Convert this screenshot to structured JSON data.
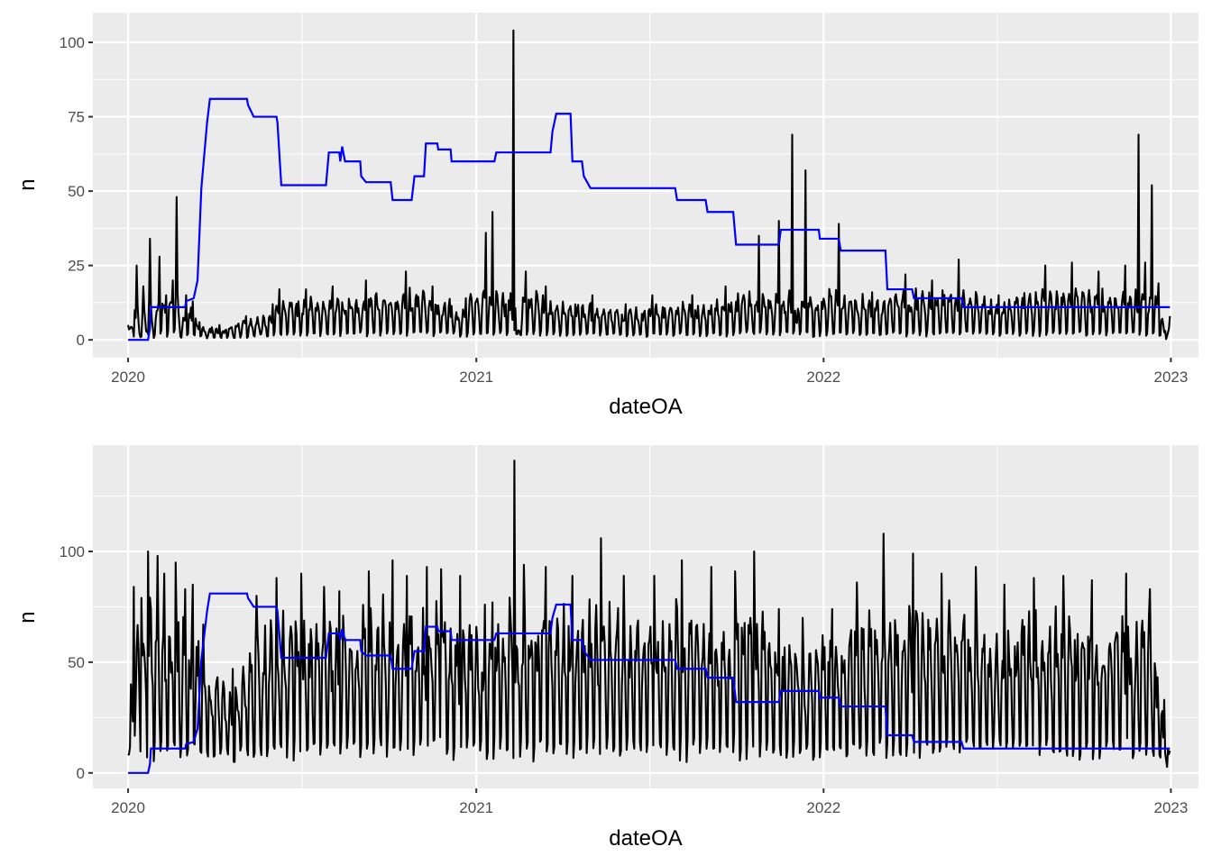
{
  "chart_data": [
    {
      "type": "line",
      "xlabel": "dateOA",
      "ylabel": "n",
      "xlim": [
        "2019-11-25",
        "2023-01-30"
      ],
      "ylim": [
        -6,
        110
      ],
      "x_ticks": [
        "2020",
        "2021",
        "2022",
        "2023"
      ],
      "y_ticks": [
        "0",
        "25",
        "50",
        "75",
        "100"
      ],
      "y_tick_values": [
        0,
        25,
        50,
        75,
        100
      ],
      "grid": true,
      "series": [
        {
          "kind": "daily counts (peaks)",
          "color": "#000000",
          "points": [
            [
              "2020-01-01",
              5
            ],
            [
              "2020-01-08",
              10
            ],
            [
              "2020-01-10",
              25
            ],
            [
              "2020-01-13",
              2
            ],
            [
              "2020-01-17",
              18
            ],
            [
              "2020-01-21",
              3
            ],
            [
              "2020-01-24",
              34
            ],
            [
              "2020-01-27",
              4
            ],
            [
              "2020-02-03",
              28
            ],
            [
              "2020-02-10",
              15
            ],
            [
              "2020-02-17",
              20
            ],
            [
              "2020-02-21",
              48
            ],
            [
              "2020-02-24",
              5
            ],
            [
              "2020-03-02",
              15
            ],
            [
              "2020-03-09",
              13
            ],
            [
              "2020-03-16",
              6
            ],
            [
              "2020-04-06",
              5
            ],
            [
              "2020-05-04",
              8
            ],
            [
              "2020-06-01",
              12
            ],
            [
              "2020-06-08",
              17
            ],
            [
              "2020-07-06",
              17
            ],
            [
              "2020-08-03",
              18
            ],
            [
              "2020-09-07",
              20
            ],
            [
              "2020-10-19",
              23
            ],
            [
              "2020-11-16",
              18
            ],
            [
              "2020-12-21",
              14
            ],
            [
              "2021-01-11",
              36
            ],
            [
              "2021-01-18",
              43
            ],
            [
              "2021-02-01",
              12
            ],
            [
              "2021-02-09",
              104
            ],
            [
              "2021-02-12",
              2
            ],
            [
              "2021-02-22",
              23
            ],
            [
              "2021-03-15",
              18
            ],
            [
              "2021-05-03",
              15
            ],
            [
              "2021-06-07",
              12
            ],
            [
              "2021-07-05",
              15
            ],
            [
              "2021-08-16",
              15
            ],
            [
              "2021-09-20",
              18
            ],
            [
              "2021-10-25",
              35
            ],
            [
              "2021-11-15",
              40
            ],
            [
              "2021-11-29",
              69
            ],
            [
              "2021-12-03",
              6
            ],
            [
              "2021-12-13",
              57
            ],
            [
              "2021-12-20",
              10
            ],
            [
              "2022-01-17",
              39
            ],
            [
              "2022-02-21",
              16
            ],
            [
              "2022-03-28",
              22
            ],
            [
              "2022-04-25",
              20
            ],
            [
              "2022-05-23",
              27
            ],
            [
              "2022-07-04",
              15
            ],
            [
              "2022-08-22",
              25
            ],
            [
              "2022-09-19",
              26
            ],
            [
              "2022-10-17",
              23
            ],
            [
              "2022-11-14",
              25
            ],
            [
              "2022-11-28",
              69
            ],
            [
              "2022-12-05",
              26
            ],
            [
              "2022-12-12",
              52
            ],
            [
              "2022-12-19",
              19
            ],
            [
              "2022-12-26",
              3
            ],
            [
              "2022-12-31",
              8
            ]
          ]
        },
        {
          "kind": "step level",
          "color": "#0000ff",
          "points": [
            [
              "2020-01-01",
              0
            ],
            [
              "2020-01-22",
              0
            ],
            [
              "2020-01-24",
              4
            ],
            [
              "2020-01-25",
              11
            ],
            [
              "2020-03-01",
              11
            ],
            [
              "2020-03-02",
              13
            ],
            [
              "2020-03-10",
              14
            ],
            [
              "2020-03-14",
              20
            ],
            [
              "2020-03-18",
              51
            ],
            [
              "2020-03-24",
              73
            ],
            [
              "2020-03-27",
              81
            ],
            [
              "2020-05-05",
              81
            ],
            [
              "2020-05-06",
              79
            ],
            [
              "2020-05-12",
              75
            ],
            [
              "2020-06-05",
              75
            ],
            [
              "2020-06-06",
              73
            ],
            [
              "2020-06-10",
              52
            ],
            [
              "2020-07-27",
              52
            ],
            [
              "2020-07-30",
              63
            ],
            [
              "2020-08-10",
              63
            ],
            [
              "2020-08-11",
              60
            ],
            [
              "2020-08-13",
              65
            ],
            [
              "2020-08-16",
              60
            ],
            [
              "2020-09-01",
              60
            ],
            [
              "2020-09-02",
              55
            ],
            [
              "2020-09-07",
              53
            ],
            [
              "2020-10-03",
              53
            ],
            [
              "2020-10-05",
              47
            ],
            [
              "2020-10-25",
              47
            ],
            [
              "2020-10-28",
              55
            ],
            [
              "2020-11-07",
              55
            ],
            [
              "2020-11-09",
              66
            ],
            [
              "2020-11-21",
              66
            ],
            [
              "2020-11-22",
              64
            ],
            [
              "2020-12-05",
              64
            ],
            [
              "2020-12-06",
              60
            ],
            [
              "2021-01-20",
              60
            ],
            [
              "2021-01-22",
              63
            ],
            [
              "2021-03-20",
              63
            ],
            [
              "2021-03-22",
              70
            ],
            [
              "2021-03-26",
              76
            ],
            [
              "2021-04-10",
              76
            ],
            [
              "2021-04-12",
              60
            ],
            [
              "2021-04-22",
              60
            ],
            [
              "2021-04-24",
              55
            ],
            [
              "2021-05-01",
              51
            ],
            [
              "2021-07-29",
              51
            ],
            [
              "2021-07-31",
              47
            ],
            [
              "2021-08-30",
              47
            ],
            [
              "2021-09-01",
              43
            ],
            [
              "2021-09-28",
              43
            ],
            [
              "2021-10-01",
              32
            ],
            [
              "2021-11-15",
              32
            ],
            [
              "2021-11-17",
              37
            ],
            [
              "2021-12-27",
              37
            ],
            [
              "2021-12-28",
              34
            ],
            [
              "2022-01-17",
              34
            ],
            [
              "2022-01-19",
              30
            ],
            [
              "2022-03-07",
              30
            ],
            [
              "2022-03-09",
              17
            ],
            [
              "2022-04-04",
              17
            ],
            [
              "2022-04-06",
              14
            ],
            [
              "2022-05-26",
              14
            ],
            [
              "2022-05-28",
              11
            ],
            [
              "2022-12-31",
              11
            ]
          ]
        }
      ]
    },
    {
      "type": "line",
      "xlabel": "dateOA",
      "ylabel": "n",
      "xlim": [
        "2019-11-25",
        "2023-01-30"
      ],
      "ylim": [
        -7,
        148
      ],
      "x_ticks": [
        "2020",
        "2021",
        "2022",
        "2023"
      ],
      "y_ticks": [
        "0",
        "50",
        "100"
      ],
      "y_tick_values": [
        0,
        50,
        100
      ],
      "grid": true,
      "series": [
        {
          "kind": "daily counts (peaks)",
          "color": "#000000",
          "points": [
            [
              "2020-01-01",
              8
            ],
            [
              "2020-01-04",
              40
            ],
            [
              "2020-01-07",
              84
            ],
            [
              "2020-01-15",
              79
            ],
            [
              "2020-01-22",
              100
            ],
            [
              "2020-02-01",
              98
            ],
            [
              "2020-02-08",
              90
            ],
            [
              "2020-02-20",
              95
            ],
            [
              "2020-03-01",
              83
            ],
            [
              "2020-03-09",
              85
            ],
            [
              "2020-03-20",
              67
            ],
            [
              "2020-04-20",
              47
            ],
            [
              "2020-05-15",
              80
            ],
            [
              "2020-06-05",
              88
            ],
            [
              "2020-07-01",
              90
            ],
            [
              "2020-07-25",
              84
            ],
            [
              "2020-08-10",
              82
            ],
            [
              "2020-09-10",
              91
            ],
            [
              "2020-10-05",
              96
            ],
            [
              "2020-10-20",
              89
            ],
            [
              "2020-11-10",
              93
            ],
            [
              "2020-11-25",
              92
            ],
            [
              "2020-12-15",
              89
            ],
            [
              "2021-01-10",
              76
            ],
            [
              "2021-01-18",
              77
            ],
            [
              "2021-02-10",
              141
            ],
            [
              "2021-02-20",
              94
            ],
            [
              "2021-03-15",
              93
            ],
            [
              "2021-04-12",
              89
            ],
            [
              "2021-05-12",
              106
            ],
            [
              "2021-06-05",
              89
            ],
            [
              "2021-07-07",
              89
            ],
            [
              "2021-08-05",
              96
            ],
            [
              "2021-09-05",
              93
            ],
            [
              "2021-09-30",
              91
            ],
            [
              "2021-10-20",
              100
            ],
            [
              "2021-11-15",
              74
            ],
            [
              "2021-12-10",
              70
            ],
            [
              "2022-01-10",
              74
            ],
            [
              "2022-02-05",
              86
            ],
            [
              "2022-03-05",
              108
            ],
            [
              "2022-04-05",
              99
            ],
            [
              "2022-05-05",
              90
            ],
            [
              "2022-06-10",
              93
            ],
            [
              "2022-07-10",
              85
            ],
            [
              "2022-08-10",
              88
            ],
            [
              "2022-09-10",
              89
            ],
            [
              "2022-10-10",
              87
            ],
            [
              "2022-11-15",
              90
            ],
            [
              "2022-12-10",
              83
            ],
            [
              "2022-12-25",
              33
            ],
            [
              "2022-12-31",
              10
            ]
          ]
        },
        {
          "kind": "step level",
          "color": "#0000ff",
          "points": [
            [
              "2020-01-01",
              0
            ],
            [
              "2020-01-22",
              0
            ],
            [
              "2020-01-24",
              4
            ],
            [
              "2020-01-25",
              11
            ],
            [
              "2020-03-01",
              11
            ],
            [
              "2020-03-02",
              13
            ],
            [
              "2020-03-10",
              14
            ],
            [
              "2020-03-14",
              20
            ],
            [
              "2020-03-18",
              51
            ],
            [
              "2020-03-24",
              73
            ],
            [
              "2020-03-27",
              81
            ],
            [
              "2020-05-05",
              81
            ],
            [
              "2020-05-06",
              79
            ],
            [
              "2020-05-12",
              75
            ],
            [
              "2020-06-05",
              75
            ],
            [
              "2020-06-06",
              73
            ],
            [
              "2020-06-10",
              52
            ],
            [
              "2020-07-27",
              52
            ],
            [
              "2020-07-30",
              63
            ],
            [
              "2020-08-10",
              63
            ],
            [
              "2020-08-11",
              60
            ],
            [
              "2020-08-13",
              65
            ],
            [
              "2020-08-16",
              60
            ],
            [
              "2020-09-01",
              60
            ],
            [
              "2020-09-02",
              55
            ],
            [
              "2020-09-07",
              53
            ],
            [
              "2020-10-03",
              53
            ],
            [
              "2020-10-05",
              47
            ],
            [
              "2020-10-25",
              47
            ],
            [
              "2020-10-28",
              55
            ],
            [
              "2020-11-07",
              55
            ],
            [
              "2020-11-09",
              66
            ],
            [
              "2020-11-21",
              66
            ],
            [
              "2020-11-22",
              64
            ],
            [
              "2020-12-05",
              64
            ],
            [
              "2020-12-06",
              60
            ],
            [
              "2021-01-20",
              60
            ],
            [
              "2021-01-22",
              63
            ],
            [
              "2021-03-20",
              63
            ],
            [
              "2021-03-22",
              70
            ],
            [
              "2021-03-26",
              76
            ],
            [
              "2021-04-10",
              76
            ],
            [
              "2021-04-12",
              60
            ],
            [
              "2021-04-22",
              60
            ],
            [
              "2021-04-24",
              55
            ],
            [
              "2021-05-01",
              51
            ],
            [
              "2021-07-29",
              51
            ],
            [
              "2021-07-31",
              47
            ],
            [
              "2021-08-30",
              47
            ],
            [
              "2021-09-01",
              43
            ],
            [
              "2021-09-28",
              43
            ],
            [
              "2021-10-01",
              32
            ],
            [
              "2021-11-15",
              32
            ],
            [
              "2021-11-17",
              37
            ],
            [
              "2021-12-27",
              37
            ],
            [
              "2021-12-28",
              34
            ],
            [
              "2022-01-17",
              34
            ],
            [
              "2022-01-19",
              30
            ],
            [
              "2022-03-07",
              30
            ],
            [
              "2022-03-09",
              17
            ],
            [
              "2022-04-04",
              17
            ],
            [
              "2022-04-06",
              14
            ],
            [
              "2022-05-26",
              14
            ],
            [
              "2022-05-28",
              11
            ],
            [
              "2022-12-31",
              11
            ]
          ]
        }
      ]
    }
  ]
}
